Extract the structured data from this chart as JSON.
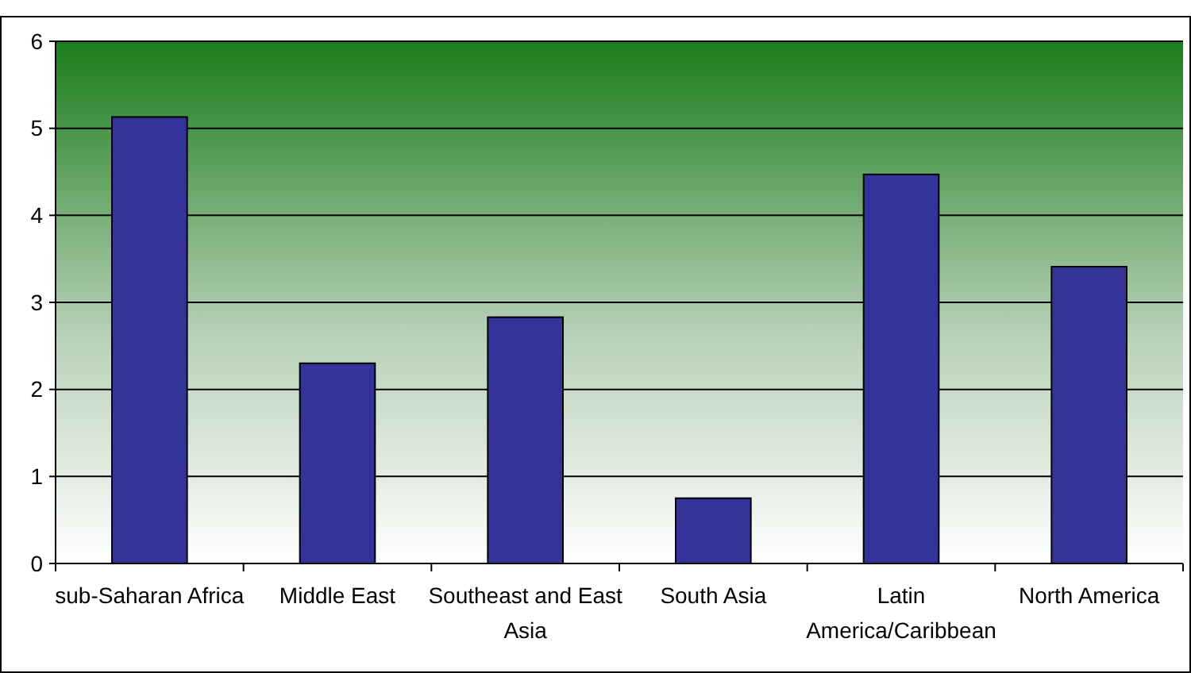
{
  "chart_data": {
    "type": "bar",
    "categories": [
      "sub-Saharan Africa",
      "Middle East",
      "Southeast and East Asia",
      "South Asia",
      "Latin America/Caribbean",
      "North America"
    ],
    "values": [
      5.13,
      2.3,
      2.83,
      0.75,
      4.47,
      3.41
    ],
    "color": "#333399",
    "ylim": [
      0,
      6
    ],
    "yticks": [
      0,
      1,
      2,
      3,
      4,
      5,
      6
    ],
    "grid": "y"
  }
}
